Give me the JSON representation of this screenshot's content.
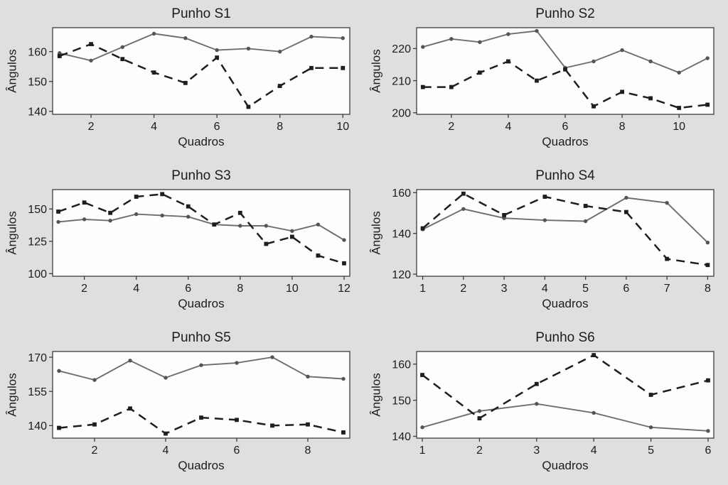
{
  "style": {
    "page_background": "#dfdfdf",
    "plot_background": "#fdfdfd",
    "frame_color": "#3c3c3c",
    "solid_line_color": "#6e6e6e",
    "solid_marker_color": "#555555",
    "dashed_line_color": "#1e1e1e",
    "text_color": "#1c1c1c"
  },
  "chart_data": [
    {
      "type": "line",
      "title": "Punho S1",
      "xlabel": "Quadros",
      "ylabel": "Ângulos",
      "x": [
        1,
        2,
        3,
        4,
        5,
        6,
        7,
        8,
        9,
        10
      ],
      "xlim": [
        0.78,
        10.22
      ],
      "ylim": [
        139,
        168
      ],
      "xticks": [
        2,
        4,
        6,
        8,
        10
      ],
      "yticks": [
        140,
        150,
        160
      ],
      "series": [
        {
          "name": "solid",
          "line": "solid",
          "marker": "circle",
          "values": [
            159.5,
            157,
            161.5,
            166,
            164.5,
            160.5,
            161,
            160,
            165,
            164.5
          ]
        },
        {
          "name": "dashed",
          "line": "dashed",
          "marker": "square",
          "values": [
            158.5,
            162.5,
            157.5,
            153,
            149.5,
            158,
            141.5,
            148.5,
            154.5,
            154.5
          ]
        }
      ]
    },
    {
      "type": "line",
      "title": "Punho S2",
      "xlabel": "Quadros",
      "ylabel": "Ângulos",
      "x": [
        1,
        2,
        3,
        4,
        5,
        6,
        7,
        8,
        9,
        10,
        11
      ],
      "xlim": [
        0.78,
        11.22
      ],
      "ylim": [
        199.5,
        226.5
      ],
      "xticks": [
        2,
        4,
        6,
        8,
        10
      ],
      "yticks": [
        200,
        210,
        220
      ],
      "series": [
        {
          "name": "solid",
          "line": "solid",
          "marker": "circle",
          "values": [
            220.5,
            223,
            222,
            224.5,
            225.5,
            214,
            216,
            219.5,
            216,
            212.5,
            217
          ]
        },
        {
          "name": "dashed",
          "line": "dashed",
          "marker": "square",
          "values": [
            208,
            208,
            212.5,
            216,
            210,
            213.5,
            202,
            206.5,
            204.5,
            201.5,
            202.5
          ]
        }
      ]
    },
    {
      "type": "line",
      "title": "Punho S3",
      "xlabel": "Quadros",
      "ylabel": "Ângulos",
      "x": [
        1,
        2,
        3,
        4,
        5,
        6,
        7,
        8,
        9,
        10,
        11,
        12
      ],
      "xlim": [
        0.78,
        12.22
      ],
      "ylim": [
        98,
        165
      ],
      "xticks": [
        2,
        4,
        6,
        8,
        10,
        12
      ],
      "yticks": [
        100,
        125,
        150
      ],
      "series": [
        {
          "name": "solid",
          "line": "solid",
          "marker": "circle",
          "values": [
            140,
            142,
            141,
            146,
            145,
            144,
            138,
            137,
            137,
            133,
            138,
            126
          ]
        },
        {
          "name": "dashed",
          "line": "dashed",
          "marker": "square",
          "values": [
            148,
            155,
            147,
            159.5,
            161.5,
            152,
            138,
            147,
            123,
            128.5,
            114,
            108
          ]
        }
      ]
    },
    {
      "type": "line",
      "title": "Punho S4",
      "xlabel": "Quadros",
      "ylabel": "Ângulos",
      "x": [
        1,
        2,
        3,
        4,
        5,
        6,
        7,
        8
      ],
      "xlim": [
        0.85,
        8.15
      ],
      "ylim": [
        119,
        161.5
      ],
      "xticks": [
        1,
        2,
        3,
        4,
        5,
        6,
        7,
        8
      ],
      "yticks": [
        120,
        140,
        160
      ],
      "series": [
        {
          "name": "solid",
          "line": "solid",
          "marker": "circle",
          "values": [
            142,
            152,
            147.5,
            146.5,
            146,
            157.5,
            155,
            135.5
          ]
        },
        {
          "name": "dashed",
          "line": "dashed",
          "marker": "square",
          "values": [
            142.5,
            159.5,
            149,
            158,
            153.5,
            150.5,
            127.5,
            124.5
          ]
        }
      ]
    },
    {
      "type": "line",
      "title": "Punho S5",
      "xlabel": "Quadros",
      "ylabel": "Ângulos",
      "x": [
        1,
        2,
        3,
        4,
        5,
        6,
        7,
        8,
        9
      ],
      "xlim": [
        0.82,
        9.18
      ],
      "ylim": [
        134.5,
        172.5
      ],
      "xticks": [
        2,
        4,
        6,
        8
      ],
      "yticks": [
        140,
        155,
        170
      ],
      "series": [
        {
          "name": "solid",
          "line": "solid",
          "marker": "circle",
          "values": [
            164,
            160,
            168.5,
            161,
            166.5,
            167.5,
            170,
            161.5,
            160.5
          ]
        },
        {
          "name": "dashed",
          "line": "dashed",
          "marker": "square",
          "values": [
            139,
            140.5,
            147.5,
            136.5,
            143.5,
            142.5,
            140,
            140.5,
            137
          ]
        }
      ]
    },
    {
      "type": "line",
      "title": "Punho S6",
      "xlabel": "Quadros",
      "ylabel": "Ângulos",
      "x": [
        1,
        2,
        3,
        4,
        5,
        6
      ],
      "xlim": [
        0.9,
        6.1
      ],
      "ylim": [
        139.5,
        163.5
      ],
      "xticks": [
        1,
        2,
        3,
        4,
        5,
        6
      ],
      "yticks": [
        140,
        150,
        160
      ],
      "series": [
        {
          "name": "solid",
          "line": "solid",
          "marker": "circle",
          "values": [
            142.5,
            147,
            149,
            146.5,
            142.5,
            141.5
          ]
        },
        {
          "name": "dashed",
          "line": "dashed",
          "marker": "square",
          "values": [
            157,
            145,
            154.5,
            162.5,
            151.5,
            155.5
          ]
        }
      ]
    }
  ]
}
